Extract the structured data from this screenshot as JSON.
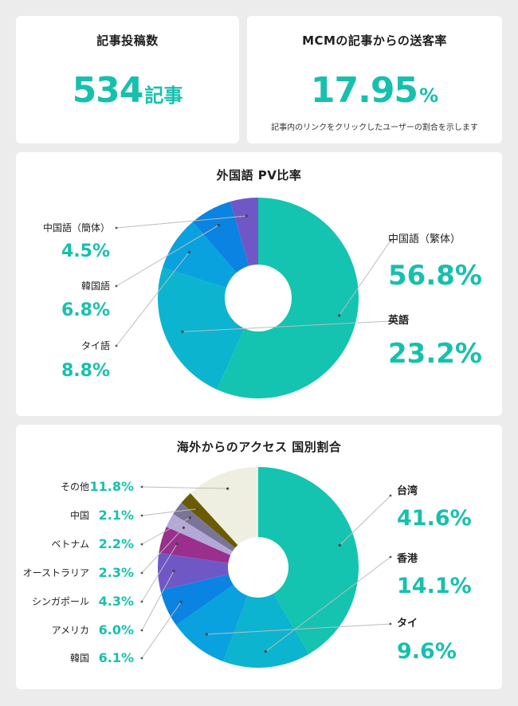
{
  "posts": {
    "title": "記事投稿数",
    "value": "534",
    "unit": "記事"
  },
  "rate": {
    "title": "MCMの記事からの送客率",
    "value": "17.95",
    "unit": "%",
    "note": "記事内のリンクをクリックしたユーザーの割合を示します"
  },
  "chart_data": [
    {
      "type": "pie",
      "title": "外国語 PV比率",
      "labels": [
        "中国語（繁体）",
        "英語",
        "タイ語",
        "韓国語",
        "中国語（簡体）"
      ],
      "values": [
        56.8,
        23.2,
        8.8,
        6.8,
        4.5
      ],
      "value_labels": [
        "56.8%",
        "23.2%",
        "8.8%",
        "6.8%",
        "4.5%"
      ],
      "colors": [
        "#14c4b0",
        "#0cb4cf",
        "#0aa1df",
        "#0a83e2",
        "#6f58c6"
      ]
    },
    {
      "type": "pie",
      "title": "海外からのアクセス 国別割合",
      "labels": [
        "台湾",
        "香港",
        "タイ",
        "韓国",
        "アメリカ",
        "シンガポール",
        "オーストラリア",
        "ベトナム",
        "中国",
        "その他"
      ],
      "values": [
        41.6,
        14.1,
        9.6,
        6.1,
        6.0,
        4.3,
        2.3,
        2.2,
        2.1,
        11.8
      ],
      "value_labels": [
        "41.6%",
        "14.1%",
        "9.6%",
        "6.1%",
        "6.0%",
        "4.3%",
        "2.3%",
        "2.2%",
        "2.1%",
        "11.8%"
      ],
      "colors": [
        "#14c4b0",
        "#0cb4cf",
        "#0aa1df",
        "#0a83e2",
        "#6f58c6",
        "#9a2f8c",
        "#b3a8d6",
        "#7a7499",
        "#6b5b00",
        "#efefe1"
      ]
    }
  ]
}
